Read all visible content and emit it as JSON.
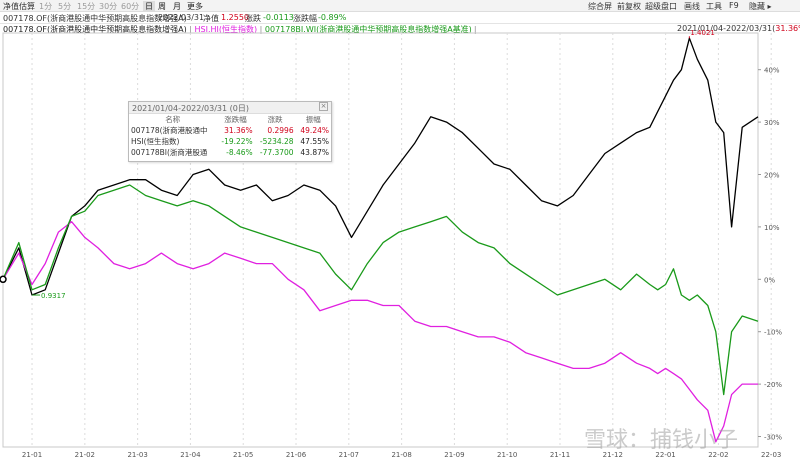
{
  "toolbar": {
    "fund_estimate": "净值估算",
    "intervals": [
      "1分",
      "5分",
      "15分",
      "30分",
      "60分",
      "日",
      "周",
      "月",
      "更多"
    ],
    "active_interval": "日",
    "right_items": [
      "综合屏",
      "前复权",
      "超级盘口",
      "画线",
      "工具",
      "F9",
      "隐藏"
    ]
  },
  "info_bar": {
    "fund_name": "007178.OF(浙商港股通中华预期高股息指数增强A)",
    "date": "2022/03/31",
    "nav_label": "净值",
    "nav_value": "1.2550",
    "change_label": "涨跌",
    "change_value": "-0.0113",
    "pct_label": "涨跌幅",
    "pct_value": "-0.89%"
  },
  "legend_line": {
    "item1": "007178.OF(浙商港股通中华预期高股息指数增强A)",
    "sep": " | ",
    "item2": "HSI.HI(恒生指数)",
    "item3": "007178BI.WI(浙商港股通中华预期高股息指数增强A基准)",
    "range": "2021/01/04-2022/03/31",
    "range_pct": "31.36%"
  },
  "popup": {
    "title": "2021/01/04-2022/03/31 (0日)",
    "headers": [
      "名称",
      "涨跌幅",
      "涨跌",
      "振幅"
    ],
    "rows": [
      {
        "name": "007178(浙商港股通中",
        "pct": "31.36%",
        "chg": "0.2996",
        "amp": "49.24%"
      },
      {
        "name": "HSI(恒生指数)",
        "pct": "-19.22%",
        "chg": "-5234.28",
        "amp": "47.55%"
      },
      {
        "name": "007178BI(浙商港股通",
        "pct": "-8.46%",
        "chg": "-77.3700",
        "amp": "43.87%"
      }
    ]
  },
  "annotations": {
    "max_label": "1.4021",
    "min_label": "0.9317"
  },
  "watermark": "雪球：捕钱小子",
  "colors": {
    "fund": "#000000",
    "hsi": "#e020e0",
    "benchmark": "#1a9a1a",
    "up": "#d0021b",
    "down": "#1a9a1a"
  },
  "chart_data": {
    "type": "line",
    "x_ticks": [
      "21-01",
      "21-02",
      "21-03",
      "21-04",
      "21-05",
      "21-06",
      "21-07",
      "21-08",
      "21-09",
      "21-10",
      "21-11",
      "21-12",
      "22-01",
      "22-02",
      "22-03"
    ],
    "y_ticks": [
      "40%",
      "30%",
      "20%",
      "10%",
      "0%",
      "-10%",
      "-20%",
      "-30%"
    ],
    "ylim": [
      -32,
      47
    ],
    "y_unit": "percent change since 2021/01/04",
    "series": [
      {
        "name": "007178.OF(浙商港股通中华预期高股息指数增强A)",
        "color": "#000000",
        "x": [
          0,
          0.3,
          0.55,
          0.8,
          1.05,
          1.3,
          1.55,
          1.8,
          2.1,
          2.4,
          2.7,
          3.0,
          3.3,
          3.6,
          3.9,
          4.2,
          4.5,
          4.8,
          5.1,
          5.4,
          5.7,
          6.0,
          6.3,
          6.6,
          6.9,
          7.2,
          7.5,
          7.8,
          8.1,
          8.4,
          8.7,
          9.0,
          9.3,
          9.6,
          9.9,
          10.2,
          10.5,
          10.8,
          11.1,
          11.4,
          11.7,
          12.0,
          12.25,
          12.4,
          12.55,
          12.7,
          12.85,
          13.0,
          13.15,
          13.35,
          13.5,
          13.65,
          13.8,
          14.0,
          14.3
        ],
        "y": [
          0,
          6,
          -3,
          -2,
          5,
          12,
          14,
          17,
          18,
          19,
          19,
          17,
          16,
          20,
          21,
          18,
          17,
          18,
          15,
          16,
          18,
          17,
          14,
          8,
          13,
          18,
          22,
          26,
          31,
          30,
          28,
          25,
          22,
          21,
          18,
          15,
          14,
          16,
          20,
          24,
          26,
          28,
          29,
          32,
          35,
          38,
          40,
          46,
          42,
          38,
          30,
          28,
          10,
          29,
          31
        ]
      },
      {
        "name": "HSI.HI(恒生指数)",
        "color": "#e020e0",
        "x": [
          0,
          0.3,
          0.55,
          0.8,
          1.05,
          1.3,
          1.55,
          1.8,
          2.1,
          2.4,
          2.7,
          3.0,
          3.3,
          3.6,
          3.9,
          4.2,
          4.5,
          4.8,
          5.1,
          5.4,
          5.7,
          6.0,
          6.3,
          6.6,
          6.9,
          7.2,
          7.5,
          7.8,
          8.1,
          8.4,
          8.7,
          9.0,
          9.3,
          9.6,
          9.9,
          10.2,
          10.5,
          10.8,
          11.1,
          11.4,
          11.7,
          12.0,
          12.25,
          12.4,
          12.55,
          12.7,
          12.85,
          13.0,
          13.15,
          13.35,
          13.5,
          13.65,
          13.8,
          14.0,
          14.3
        ],
        "y": [
          0,
          5,
          -1,
          3,
          9,
          11,
          8,
          6,
          3,
          2,
          3,
          5,
          3,
          2,
          3,
          5,
          4,
          3,
          3,
          0,
          -2,
          -6,
          -5,
          -4,
          -4,
          -5,
          -5,
          -8,
          -9,
          -9,
          -10,
          -11,
          -11,
          -12,
          -14,
          -15,
          -16,
          -17,
          -17,
          -16,
          -14,
          -16,
          -17,
          -18,
          -17,
          -18,
          -19,
          -21,
          -23,
          -25,
          -31,
          -28,
          -22,
          -20,
          -20
        ]
      },
      {
        "name": "007178BI.WI(浙商港股通中华预期高股息指数增强A基准)",
        "color": "#1a9a1a",
        "x": [
          0,
          0.3,
          0.55,
          0.8,
          1.05,
          1.3,
          1.55,
          1.8,
          2.1,
          2.4,
          2.7,
          3.0,
          3.3,
          3.6,
          3.9,
          4.2,
          4.5,
          4.8,
          5.1,
          5.4,
          5.7,
          6.0,
          6.3,
          6.6,
          6.9,
          7.2,
          7.5,
          7.8,
          8.1,
          8.4,
          8.7,
          9.0,
          9.3,
          9.6,
          9.9,
          10.2,
          10.5,
          10.8,
          11.1,
          11.4,
          11.7,
          12.0,
          12.25,
          12.4,
          12.55,
          12.7,
          12.85,
          13.0,
          13.15,
          13.35,
          13.5,
          13.65,
          13.8,
          14.0,
          14.3
        ],
        "y": [
          0,
          7,
          -2,
          -1,
          6,
          12,
          13,
          16,
          17,
          18,
          16,
          15,
          14,
          15,
          14,
          12,
          10,
          9,
          8,
          7,
          6,
          5,
          1,
          -2,
          3,
          7,
          9,
          10,
          11,
          12,
          9,
          7,
          6,
          3,
          1,
          -1,
          -3,
          -2,
          -1,
          0,
          -2,
          1,
          -1,
          -2,
          -1,
          2,
          -3,
          -4,
          -3,
          -5,
          -10,
          -22,
          -10,
          -7,
          -8
        ]
      }
    ],
    "title": "",
    "xlabel": "",
    "ylabel": "",
    "grid": "vertical dashed",
    "legend": "top-left inline"
  }
}
